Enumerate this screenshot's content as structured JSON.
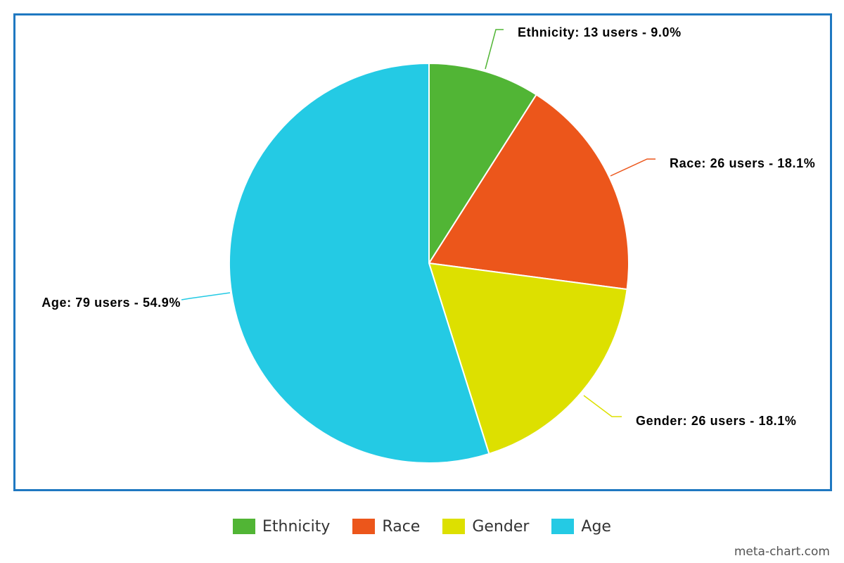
{
  "chart_data": {
    "type": "pie",
    "title": "",
    "slices": [
      {
        "name": "Ethnicity",
        "value": 13,
        "percent": 9.0,
        "color": "#51b535",
        "label": "Ethnicity: 13 users - 9.0%"
      },
      {
        "name": "Race",
        "value": 26,
        "percent": 18.1,
        "color": "#ec561b",
        "label": "Race: 26 users - 18.1%"
      },
      {
        "name": "Gender",
        "value": 26,
        "percent": 18.1,
        "color": "#dde000",
        "label": "Gender: 26 users - 18.1%"
      },
      {
        "name": "Age",
        "value": 79,
        "percent": 54.9,
        "color": "#24cae4",
        "label": "Age: 79 users - 54.9%"
      }
    ],
    "legend_position": "bottom"
  },
  "legend": {
    "items": [
      {
        "label": "Ethnicity",
        "color": "#51b535"
      },
      {
        "label": "Race",
        "color": "#ec561b"
      },
      {
        "label": "Gender",
        "color": "#dde000"
      },
      {
        "label": "Age",
        "color": "#24cae4"
      }
    ]
  },
  "frame_color": "#1f78c1",
  "watermark": "meta-chart.com"
}
